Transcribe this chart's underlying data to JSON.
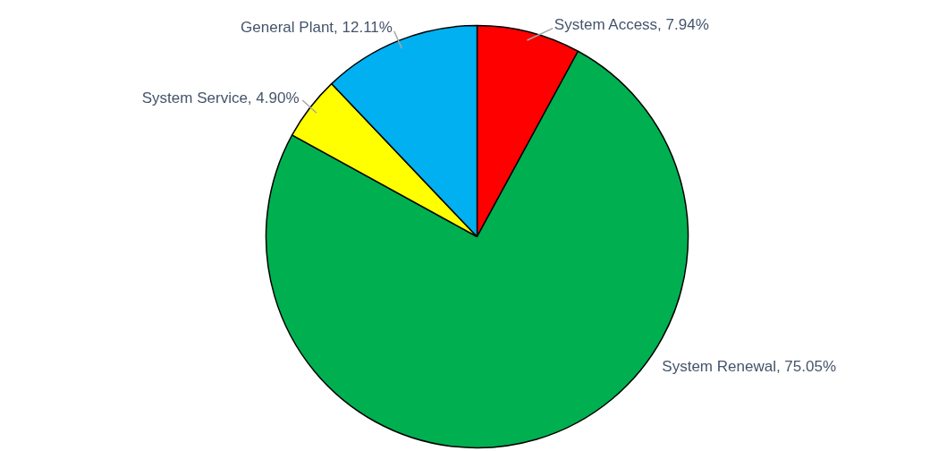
{
  "chart_data": {
    "type": "pie",
    "categories": [
      "System Access",
      "System Renewal",
      "System Service",
      "General Plant"
    ],
    "values": [
      7.94,
      75.05,
      4.9,
      12.11
    ],
    "colors": [
      "#ff0000",
      "#00b050",
      "#ffff00",
      "#00b0f0"
    ],
    "value_labels": [
      "7.94%",
      "75.05%",
      "4.90%",
      "12.11%"
    ]
  }
}
